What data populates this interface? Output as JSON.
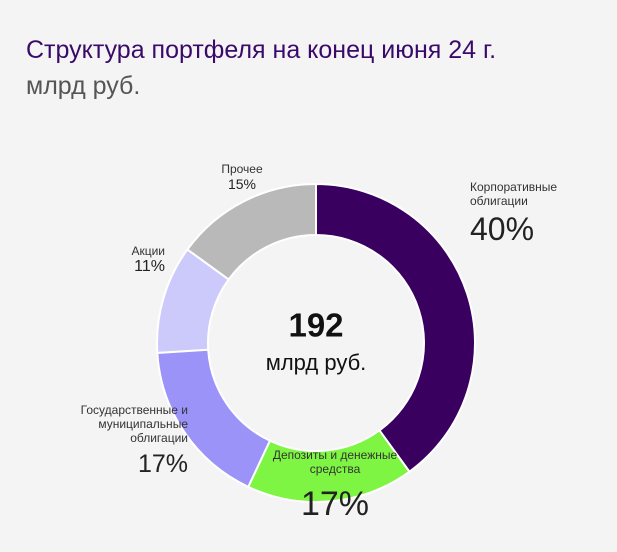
{
  "chart_data": {
    "type": "donut",
    "title": "Структура портфеля на конец июня 24 г.",
    "subtitle": "млрд руб.",
    "center_value": 192,
    "center_label": "млрд руб.",
    "categories": [
      "Корпоративные облигации",
      "Депозиты и денежные средства",
      "Государственные и муниципальные облигации",
      "Акции",
      "Прочее"
    ],
    "values": [
      40,
      17,
      17,
      11,
      15
    ],
    "value_labels": [
      "40%",
      "17%",
      "17%",
      "11%",
      "15%"
    ],
    "colors": [
      "#3a0060",
      "#7ef542",
      "#9b93f7",
      "#ccc9fb",
      "#b9b9b9"
    ]
  }
}
